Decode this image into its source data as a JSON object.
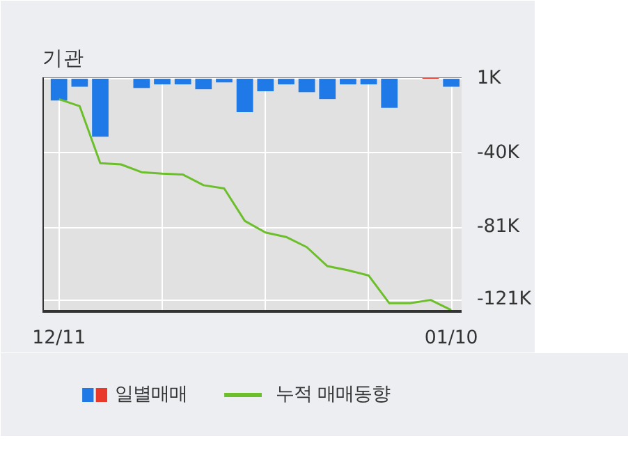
{
  "chart_data": {
    "type": "bar",
    "title": "기관",
    "categories": [
      "12/11",
      null,
      null,
      null,
      null,
      null,
      null,
      null,
      null,
      null,
      null,
      null,
      null,
      null,
      null,
      null,
      null,
      null,
      null,
      "01/10"
    ],
    "series": [
      {
        "name": "일별매매",
        "colors": [
          "#1f7ae8",
          "#1f7ae8",
          "#1f7ae8",
          "#1f7ae8",
          "#1f7ae8",
          "#1f7ae8",
          "#1f7ae8",
          "#1f7ae8",
          "#1f7ae8",
          "#1f7ae8",
          "#1f7ae8",
          "#1f7ae8",
          "#1f7ae8",
          "#1f7ae8",
          "#1f7ae8",
          "#1f7ae8",
          "#1f7ae8",
          "#1f7ae8",
          "#e8392b",
          "#1f7ae8"
        ],
        "base": [
          1,
          1,
          1,
          null,
          1,
          1,
          1,
          1,
          1,
          1,
          1,
          1,
          1,
          1,
          1,
          1,
          1,
          null,
          1,
          1
        ],
        "values": [
          -12,
          -4.4,
          -32,
          null,
          -5.1,
          -3.1,
          -3.1,
          -5.8,
          -2,
          -18.4,
          -6.9,
          -3.1,
          -7.4,
          -11.2,
          -3.1,
          -3.1,
          -16,
          null,
          0.7,
          -4.4
        ]
      },
      {
        "name": "누적 매매동향",
        "type": "line",
        "color": "#6cbf2a",
        "values": [
          -10.3,
          -14.1,
          -45.6,
          -46.3,
          -50.6,
          -51.4,
          -51.9,
          -57.8,
          -59.6,
          -77.5,
          -83.9,
          -86.4,
          -92,
          -102.5,
          -104.8,
          -107.7,
          -123,
          -123,
          -121.2,
          -126.8
        ]
      }
    ],
    "ylim": [
      -127.5,
      1.8
    ],
    "yticks": [
      {
        "value": 1,
        "label": "1K"
      },
      {
        "value": -40,
        "label": "-40K"
      },
      {
        "value": -81,
        "label": "-81K"
      },
      {
        "value": -121,
        "label": "-121K"
      }
    ],
    "grid": true,
    "legend": "bottom"
  }
}
